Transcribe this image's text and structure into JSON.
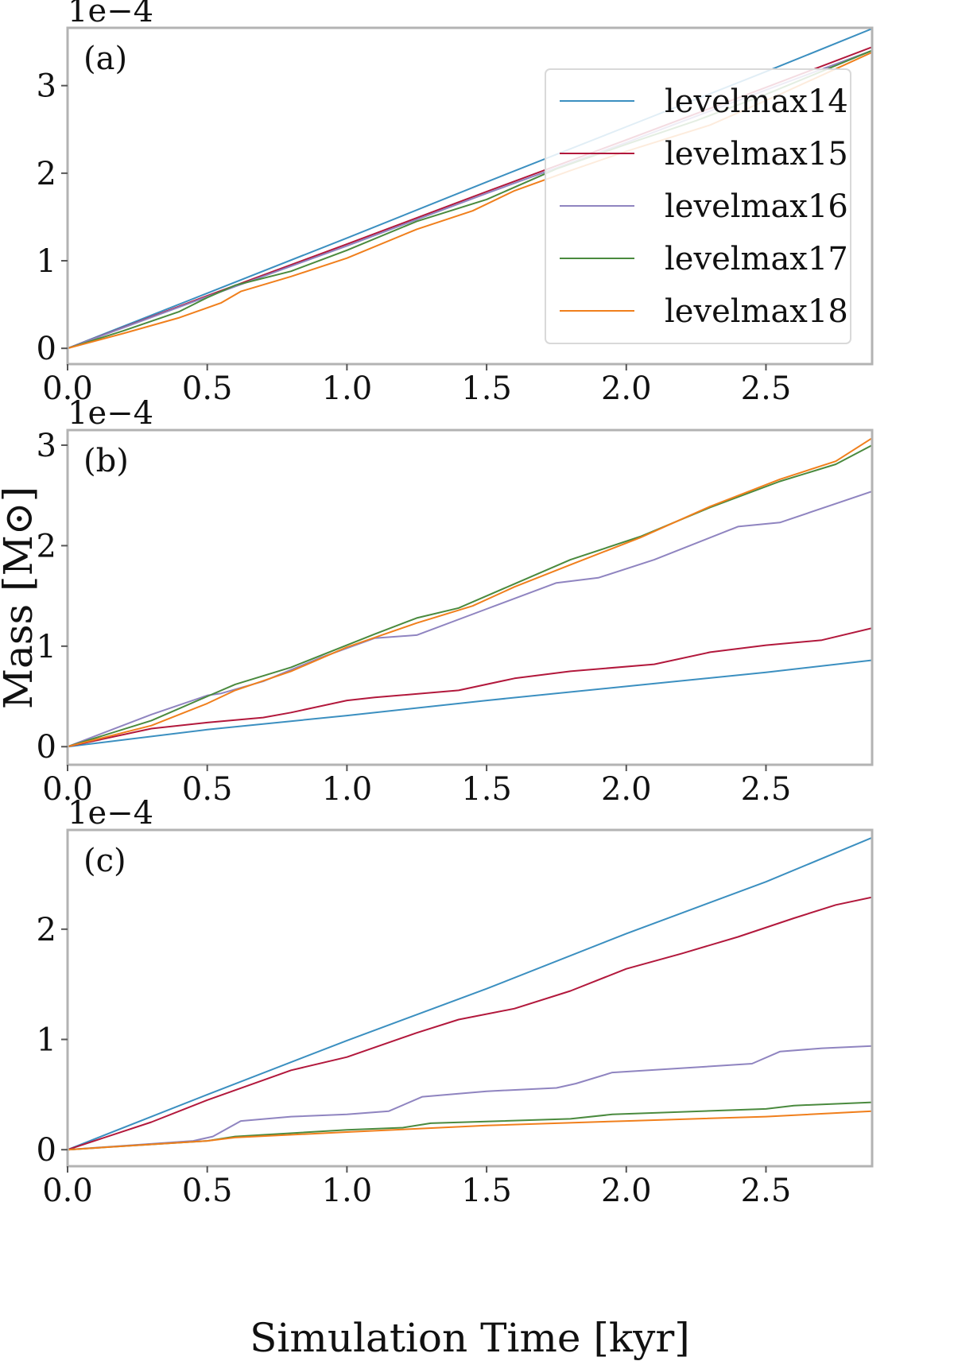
{
  "chart_data": {
    "type": "line",
    "xlabel": "Simulation Time [kyr]",
    "ylabel": "Mass [M⊙]",
    "xlim": [
      0,
      2.88
    ],
    "xticks": [
      "0.0",
      "0.5",
      "1.0",
      "1.5",
      "2.0",
      "2.5"
    ],
    "colors": {
      "levelmax14": "#3b8fc0",
      "levelmax15": "#b2183c",
      "levelmax16": "#8f84c0",
      "levelmax17": "#4a8a3e",
      "levelmax18": "#f07f1c"
    },
    "legend": {
      "placement": "upper-right of panel (a)",
      "entries": [
        "levelmax14",
        "levelmax15",
        "levelmax16",
        "levelmax17",
        "levelmax18"
      ]
    },
    "panels": [
      {
        "label": "(a)",
        "exponent": "1e−4",
        "ylim": [
          -0.18,
          3.66
        ],
        "yticks": [
          "0",
          "1",
          "2",
          "3"
        ],
        "series": [
          {
            "name": "levelmax14",
            "x": [
              0,
              0.5,
              1.0,
              1.5,
              2.0,
              2.5,
              2.88
            ],
            "y": [
              0,
              0.63,
              1.26,
              1.9,
              2.53,
              3.16,
              3.65
            ]
          },
          {
            "name": "levelmax15",
            "x": [
              0,
              0.5,
              1.0,
              1.5,
              2.0,
              2.5,
              2.88
            ],
            "y": [
              0,
              0.6,
              1.19,
              1.79,
              2.38,
              2.98,
              3.44
            ]
          },
          {
            "name": "levelmax16",
            "x": [
              0,
              0.5,
              1.0,
              1.5,
              2.0,
              2.5,
              2.88
            ],
            "y": [
              0,
              0.59,
              1.17,
              1.77,
              2.35,
              2.95,
              3.4
            ]
          },
          {
            "name": "levelmax17",
            "x": [
              0,
              0.2,
              0.4,
              0.5,
              0.6,
              0.8,
              1.0,
              1.25,
              1.5,
              1.75,
              2.0,
              2.25,
              2.5,
              2.88
            ],
            "y": [
              0,
              0.2,
              0.42,
              0.58,
              0.72,
              0.88,
              1.12,
              1.45,
              1.7,
              2.05,
              2.33,
              2.6,
              2.9,
              3.4
            ]
          },
          {
            "name": "levelmax18",
            "x": [
              0,
              0.2,
              0.4,
              0.55,
              0.62,
              0.8,
              1.0,
              1.25,
              1.45,
              1.6,
              1.8,
              2.0,
              2.3,
              2.55,
              2.88
            ],
            "y": [
              0,
              0.17,
              0.35,
              0.52,
              0.65,
              0.82,
              1.03,
              1.36,
              1.57,
              1.8,
              2.03,
              2.25,
              2.55,
              2.9,
              3.38
            ]
          }
        ]
      },
      {
        "label": "(b)",
        "exponent": "1e−4",
        "ylim": [
          -0.18,
          3.15
        ],
        "yticks": [
          "0",
          "1",
          "2",
          "3"
        ],
        "series": [
          {
            "name": "levelmax14",
            "x": [
              0,
              0.5,
              1.0,
              1.5,
              2.0,
              2.5,
              2.88
            ],
            "y": [
              0,
              0.17,
              0.31,
              0.46,
              0.6,
              0.74,
              0.86
            ]
          },
          {
            "name": "levelmax15",
            "x": [
              0,
              0.3,
              0.5,
              0.7,
              0.8,
              1.0,
              1.1,
              1.4,
              1.6,
              1.8,
              2.1,
              2.3,
              2.5,
              2.7,
              2.88
            ],
            "y": [
              0,
              0.18,
              0.24,
              0.29,
              0.34,
              0.46,
              0.49,
              0.56,
              0.68,
              0.75,
              0.82,
              0.94,
              1.01,
              1.06,
              1.18
            ]
          },
          {
            "name": "levelmax16",
            "x": [
              0,
              0.3,
              0.5,
              0.55,
              0.7,
              0.9,
              1.1,
              1.25,
              1.5,
              1.75,
              1.9,
              2.1,
              2.4,
              2.55,
              2.88
            ],
            "y": [
              0,
              0.32,
              0.51,
              0.53,
              0.65,
              0.88,
              1.08,
              1.11,
              1.37,
              1.63,
              1.68,
              1.86,
              2.19,
              2.23,
              2.54
            ]
          },
          {
            "name": "levelmax17",
            "x": [
              0,
              0.3,
              0.5,
              0.6,
              0.8,
              1.1,
              1.25,
              1.4,
              1.6,
              1.8,
              2.05,
              2.3,
              2.55,
              2.75,
              2.88
            ],
            "y": [
              0,
              0.26,
              0.5,
              0.62,
              0.79,
              1.12,
              1.28,
              1.38,
              1.62,
              1.86,
              2.09,
              2.38,
              2.64,
              2.81,
              3.0
            ]
          },
          {
            "name": "levelmax18",
            "x": [
              0,
              0.3,
              0.5,
              0.6,
              0.8,
              1.0,
              1.25,
              1.45,
              1.6,
              1.8,
              2.05,
              2.3,
              2.55,
              2.75,
              2.88
            ],
            "y": [
              0,
              0.21,
              0.43,
              0.56,
              0.75,
              0.99,
              1.23,
              1.4,
              1.59,
              1.81,
              2.08,
              2.39,
              2.66,
              2.84,
              3.07
            ]
          }
        ]
      },
      {
        "label": "(c)",
        "exponent": "1e−4",
        "ylim": [
          -0.15,
          2.9
        ],
        "yticks": [
          "0",
          "1",
          "2"
        ],
        "series": [
          {
            "name": "levelmax14",
            "x": [
              0,
              0.5,
              1.0,
              1.5,
              2.0,
              2.5,
              2.88
            ],
            "y": [
              0,
              0.5,
              0.99,
              1.46,
              1.96,
              2.43,
              2.83
            ]
          },
          {
            "name": "levelmax15",
            "x": [
              0,
              0.3,
              0.5,
              0.8,
              1.0,
              1.25,
              1.4,
              1.6,
              1.8,
              2.0,
              2.2,
              2.4,
              2.6,
              2.75,
              2.88
            ],
            "y": [
              0,
              0.25,
              0.45,
              0.72,
              0.84,
              1.06,
              1.18,
              1.28,
              1.44,
              1.64,
              1.78,
              1.93,
              2.1,
              2.22,
              2.29
            ]
          },
          {
            "name": "levelmax16",
            "x": [
              0,
              0.45,
              0.52,
              0.62,
              0.8,
              1.0,
              1.15,
              1.27,
              1.5,
              1.75,
              1.82,
              1.95,
              2.2,
              2.45,
              2.55,
              2.7,
              2.88
            ],
            "y": [
              0,
              0.08,
              0.12,
              0.26,
              0.3,
              0.32,
              0.35,
              0.48,
              0.53,
              0.56,
              0.6,
              0.7,
              0.74,
              0.78,
              0.89,
              0.92,
              0.94
            ]
          },
          {
            "name": "levelmax17",
            "x": [
              0,
              0.5,
              0.6,
              1.0,
              1.2,
              1.3,
              1.8,
              1.95,
              2.5,
              2.6,
              2.88
            ],
            "y": [
              0,
              0.08,
              0.12,
              0.18,
              0.2,
              0.24,
              0.28,
              0.32,
              0.37,
              0.4,
              0.43
            ]
          },
          {
            "name": "levelmax18",
            "x": [
              0,
              0.5,
              0.6,
              1.0,
              1.5,
              2.0,
              2.5,
              2.88
            ],
            "y": [
              0,
              0.08,
              0.11,
              0.16,
              0.22,
              0.26,
              0.3,
              0.35
            ]
          }
        ]
      }
    ]
  }
}
